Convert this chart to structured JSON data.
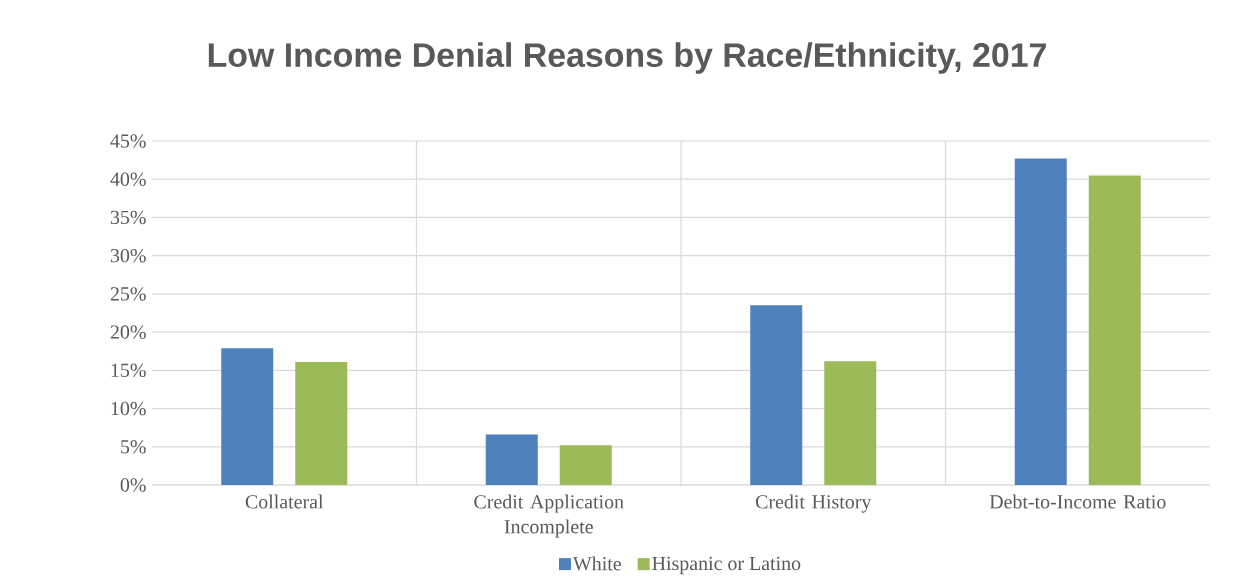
{
  "chart_data": {
    "type": "bar",
    "title": "Low Income Denial Reasons by Race/Ethnicity, 2017",
    "categories": [
      "Collateral",
      "Credit Application Incomplete",
      "Credit History",
      "Debt-to-Income Ratio"
    ],
    "series": [
      {
        "name": "White",
        "color": "#4f81bd",
        "values": [
          17.9,
          6.6,
          23.5,
          42.7
        ]
      },
      {
        "name": "Hispanic or Latino",
        "color": "#9bbb59",
        "values": [
          16.1,
          5.2,
          16.2,
          40.5
        ]
      }
    ],
    "ylim": [
      0,
      45
    ],
    "yticks": [
      {
        "value": 0,
        "label": "0%"
      },
      {
        "value": 5,
        "label": "5%"
      },
      {
        "value": 10,
        "label": "10%"
      },
      {
        "value": 15,
        "label": "15%"
      },
      {
        "value": 20,
        "label": "20%"
      },
      {
        "value": 25,
        "label": "25%"
      },
      {
        "value": 30,
        "label": "30%"
      },
      {
        "value": 35,
        "label": "35%"
      },
      {
        "value": 40,
        "label": "40%"
      },
      {
        "value": 45,
        "label": "45%"
      }
    ],
    "grid": true,
    "legend": "bottom"
  }
}
